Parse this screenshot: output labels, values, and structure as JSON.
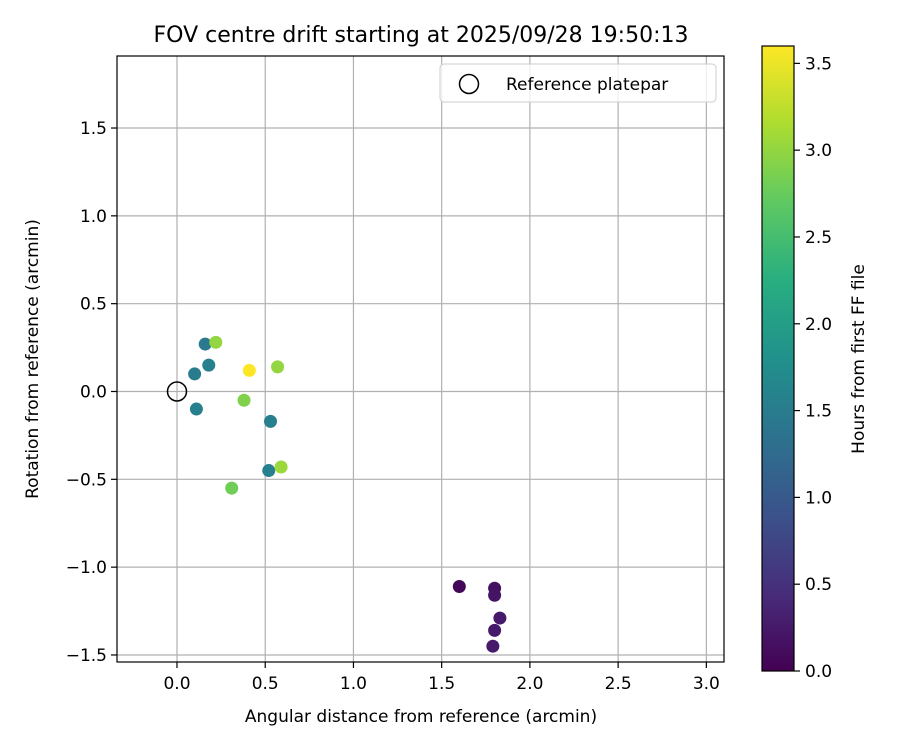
{
  "chart_data": {
    "type": "scatter",
    "title": "FOV centre drift starting at 2025/09/28 19:50:13",
    "xlabel": "Angular distance from reference (arcmin)",
    "ylabel": "Rotation from reference (arcmin)",
    "xlim": [
      -0.34,
      3.1
    ],
    "ylim": [
      -1.54,
      1.91
    ],
    "xticks": [
      0.0,
      0.5,
      1.0,
      1.5,
      2.0,
      2.5,
      3.0
    ],
    "yticks": [
      -1.5,
      -1.0,
      -0.5,
      0.0,
      0.5,
      1.0,
      1.5
    ],
    "grid": true,
    "legend": {
      "position": "top-right",
      "entries": [
        "Reference platepar"
      ]
    },
    "reference_point": {
      "x": 0.0,
      "y": 0.0,
      "marker": "open-circle"
    },
    "colorbar": {
      "label": "Hours from first FF file",
      "colormap": "viridis",
      "range": [
        0.0,
        3.6
      ],
      "ticks": [
        0.0,
        0.5,
        1.0,
        1.5,
        2.0,
        2.5,
        3.0,
        3.5
      ]
    },
    "points": [
      {
        "x": 1.6,
        "y": -1.11,
        "c": 0.05
      },
      {
        "x": 1.8,
        "y": -1.12,
        "c": 0.15
      },
      {
        "x": 1.8,
        "y": -1.16,
        "c": 0.2
      },
      {
        "x": 1.83,
        "y": -1.29,
        "c": 0.25
      },
      {
        "x": 1.8,
        "y": -1.36,
        "c": 0.25
      },
      {
        "x": 1.79,
        "y": -1.45,
        "c": 0.25
      },
      {
        "x": 0.16,
        "y": 0.27,
        "c": 1.45
      },
      {
        "x": 0.18,
        "y": 0.15,
        "c": 1.55
      },
      {
        "x": 0.1,
        "y": 0.1,
        "c": 1.5
      },
      {
        "x": 0.11,
        "y": -0.1,
        "c": 1.55
      },
      {
        "x": 0.53,
        "y": -0.17,
        "c": 1.55
      },
      {
        "x": 0.52,
        "y": -0.45,
        "c": 1.55
      },
      {
        "x": 0.22,
        "y": 0.28,
        "c": 3.0
      },
      {
        "x": 0.57,
        "y": 0.14,
        "c": 3.0
      },
      {
        "x": 0.38,
        "y": -0.05,
        "c": 2.9
      },
      {
        "x": 0.59,
        "y": -0.43,
        "c": 3.05
      },
      {
        "x": 0.31,
        "y": -0.55,
        "c": 2.8
      },
      {
        "x": 0.41,
        "y": 0.12,
        "c": 3.6
      }
    ]
  }
}
